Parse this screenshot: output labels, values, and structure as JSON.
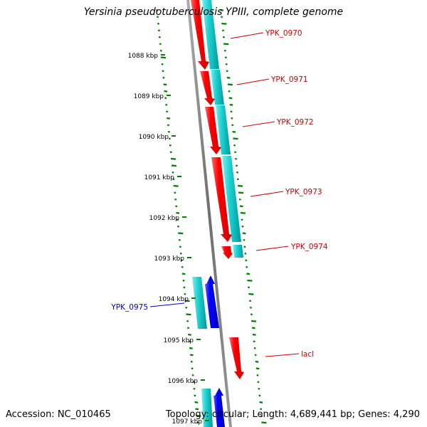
{
  "title": "Yersinia pseudotuberculosis YPIII, complete genome",
  "accession": "Accession: NC_010465",
  "topology": "Topology: circular; Length: 4,689,441 bp; Genes: 4,290",
  "colors": {
    "forward_cds": "#ff0000",
    "reverse_cds": "#0000ff",
    "gene_feature": "#00cccc",
    "backbone": "#808080",
    "gc_ticks": "#008000",
    "forward_label": "#cc0000",
    "reverse_label": "#0000cc"
  },
  "ticks": [
    {
      "label": "1088 kbp"
    },
    {
      "label": "1089 kbp"
    },
    {
      "label": "1090 kbp"
    },
    {
      "label": "1091 kbp"
    },
    {
      "label": "1092 kbp"
    },
    {
      "label": "1093 kbp"
    },
    {
      "label": "1094 kbp"
    },
    {
      "label": "1095 kbp"
    },
    {
      "label": "1096 kbp"
    },
    {
      "label": "1097 kbp"
    }
  ],
  "genes": [
    {
      "label": "YPK_0970",
      "strand": "forward"
    },
    {
      "label": "YPK_0971",
      "strand": "forward"
    },
    {
      "label": "YPK_0972",
      "strand": "forward"
    },
    {
      "label": "YPK_0973",
      "strand": "forward"
    },
    {
      "label": "YPK_0974",
      "strand": "forward"
    },
    {
      "label": "YPK_0975",
      "strand": "reverse"
    },
    {
      "label": "lacI",
      "strand": "forward"
    }
  ]
}
